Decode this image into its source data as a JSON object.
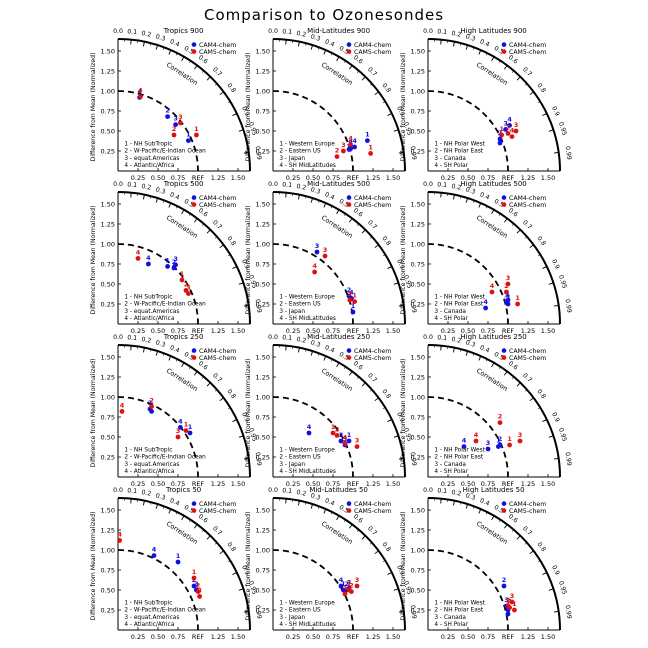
{
  "figure": {
    "title": "Comparison to Ozonesondes",
    "y_label": "Difference from Mean (Normalized)",
    "corr_label": "Correlation",
    "ref_label": "REF",
    "model_colors": {
      "CAM4-chem": "#1010e0",
      "CAM5-chem": "#e01010"
    }
  },
  "chart_data": [
    {
      "type": "scatter",
      "title": "Tropics 900",
      "region": "tropics",
      "legend": [
        "CAM4-chem",
        "CAM5-chem"
      ],
      "sites": [
        "1 - NH SubTropic",
        "2 - W-Pacific/E-Indian Ocean",
        "3 - equat.Americas",
        "4 - Atlantic/Africa"
      ],
      "series": [
        {
          "name": "CAM4-chem",
          "points": [
            {
              "label": "1",
              "x": 0.88,
              "y": 0.38
            },
            {
              "label": "2",
              "x": 0.62,
              "y": 0.68
            },
            {
              "label": "3",
              "x": 0.72,
              "y": 0.58
            },
            {
              "label": "4",
              "x": 0.27,
              "y": 0.92
            }
          ]
        },
        {
          "name": "CAM5-chem",
          "points": [
            {
              "label": "1",
              "x": 0.98,
              "y": 0.45
            },
            {
              "label": "2",
              "x": 0.7,
              "y": 0.45
            },
            {
              "label": "3",
              "x": 0.78,
              "y": 0.6
            },
            {
              "label": "4",
              "x": 0.28,
              "y": 0.93
            }
          ]
        }
      ]
    },
    {
      "type": "scatter",
      "title": "Mid-Latitudes 900",
      "region": "mid",
      "legend": [
        "CAM4-chem",
        "CAM5-chem"
      ],
      "sites": [
        "1 - Western Europe",
        "2 - Eastern US",
        "3 - Japan",
        "4 - SH MidLatitudes"
      ],
      "series": [
        {
          "name": "CAM4-chem",
          "points": [
            {
              "label": "1",
              "x": 1.18,
              "y": 0.38
            },
            {
              "label": "2",
              "x": 0.95,
              "y": 0.27
            },
            {
              "label": "3",
              "x": 0.97,
              "y": 0.28
            },
            {
              "label": "4",
              "x": 1.02,
              "y": 0.3
            }
          ]
        },
        {
          "name": "CAM5-chem",
          "points": [
            {
              "label": "1",
              "x": 1.22,
              "y": 0.22
            },
            {
              "label": "2",
              "x": 0.8,
              "y": 0.18
            },
            {
              "label": "3",
              "x": 0.88,
              "y": 0.25
            },
            {
              "label": "4",
              "x": 0.97,
              "y": 0.33
            }
          ]
        }
      ]
    },
    {
      "type": "scatter",
      "title": "High Latitudes 900",
      "region": "high",
      "legend": [
        "CAM4-chem",
        "CAM5-chem"
      ],
      "sites": [
        "1 - NH Polar West",
        "2 - NH Polar East",
        "3 - Canada",
        "4 - SH Polar"
      ],
      "sites_overlap": true,
      "series": [
        {
          "name": "CAM4-chem",
          "points": [
            {
              "label": "1",
              "x": 0.9,
              "y": 0.35
            },
            {
              "label": "2",
              "x": 0.9,
              "y": 0.4
            },
            {
              "label": "3",
              "x": 0.97,
              "y": 0.52
            },
            {
              "label": "4",
              "x": 1.02,
              "y": 0.57
            }
          ]
        },
        {
          "name": "CAM5-chem",
          "points": [
            {
              "label": "1",
              "x": 0.92,
              "y": 0.45
            },
            {
              "label": "2",
              "x": 1.0,
              "y": 0.47
            },
            {
              "label": "3",
              "x": 1.1,
              "y": 0.5
            },
            {
              "label": "4",
              "x": 1.05,
              "y": 0.43
            }
          ]
        }
      ]
    },
    {
      "type": "scatter",
      "title": "Tropics 500",
      "region": "tropics",
      "legend": [
        "CAM4-chem",
        "CAM5-chem"
      ],
      "sites": [
        "1 - NH SubTropic",
        "2 - W-Pacific/E-Indian Ocean",
        "3 - equat.Americas",
        "4 - Atlantic/Africa"
      ],
      "series": [
        {
          "name": "CAM4-chem",
          "points": [
            {
              "label": "1",
              "x": 0.62,
              "y": 0.72
            },
            {
              "label": "2",
              "x": 0.7,
              "y": 0.7
            },
            {
              "label": "3",
              "x": 0.72,
              "y": 0.74
            },
            {
              "label": "4",
              "x": 0.38,
              "y": 0.75
            }
          ]
        },
        {
          "name": "CAM5-chem",
          "points": [
            {
              "label": "1",
              "x": 0.8,
              "y": 0.55
            },
            {
              "label": "2",
              "x": 0.85,
              "y": 0.42
            },
            {
              "label": "3",
              "x": 0.88,
              "y": 0.38
            },
            {
              "label": "4",
              "x": 0.25,
              "y": 0.82
            }
          ]
        }
      ]
    },
    {
      "type": "scatter",
      "title": "Mid-Latitudes 500",
      "region": "mid",
      "legend": [
        "CAM4-chem",
        "CAM5-chem"
      ],
      "sites": [
        "1 - Western Europe",
        "2 - Eastern US",
        "3 - Japan",
        "4 - SH MidLatitudes"
      ],
      "series": [
        {
          "name": "CAM4-chem",
          "points": [
            {
              "label": "1",
              "x": 1.0,
              "y": 0.15
            },
            {
              "label": "2",
              "x": 0.95,
              "y": 0.35
            },
            {
              "label": "3",
              "x": 0.55,
              "y": 0.9
            },
            {
              "label": "4",
              "x": 0.98,
              "y": 0.32
            }
          ]
        },
        {
          "name": "CAM5-chem",
          "points": [
            {
              "label": "1",
              "x": 1.02,
              "y": 0.28
            },
            {
              "label": "2",
              "x": 0.96,
              "y": 0.3
            },
            {
              "label": "3",
              "x": 0.65,
              "y": 0.85
            },
            {
              "label": "4",
              "x": 0.52,
              "y": 0.65
            }
          ]
        }
      ]
    },
    {
      "type": "scatter",
      "title": "High Latitudes 500",
      "region": "high",
      "legend": [
        "CAM4-chem",
        "CAM5-chem"
      ],
      "sites": [
        "1 - NH Polar West",
        "2 - NH Polar East",
        "3 - Canada",
        "4 - SH Polar"
      ],
      "sites_overlap": true,
      "series": [
        {
          "name": "CAM4-chem",
          "points": [
            {
              "label": "1",
              "x": 1.0,
              "y": 0.3
            },
            {
              "label": "2",
              "x": 1.0,
              "y": 0.25
            },
            {
              "label": "3",
              "x": 0.98,
              "y": 0.28
            },
            {
              "label": "4",
              "x": 0.72,
              "y": 0.2
            }
          ]
        },
        {
          "name": "CAM5-chem",
          "points": [
            {
              "label": "1",
              "x": 1.12,
              "y": 0.25
            },
            {
              "label": "2",
              "x": 0.98,
              "y": 0.4
            },
            {
              "label": "3",
              "x": 1.0,
              "y": 0.5
            },
            {
              "label": "4",
              "x": 0.8,
              "y": 0.4
            }
          ]
        }
      ]
    },
    {
      "type": "scatter",
      "title": "Tropics 250",
      "region": "tropics",
      "legend": [
        "CAM4-chem",
        "CAM5-chem"
      ],
      "sites": [
        "1 - NH SubTropic",
        "2 - W-Pacific/E-Indian Ocean",
        "3 - equat.Americas",
        "4 - Atlantic/Africa"
      ],
      "series": [
        {
          "name": "CAM4-chem",
          "points": [
            {
              "label": "1",
              "x": 0.9,
              "y": 0.55
            },
            {
              "label": "2",
              "x": 0.4,
              "y": 0.85
            },
            {
              "label": "3",
              "x": 0.42,
              "y": 0.82
            },
            {
              "label": "4",
              "x": 0.78,
              "y": 0.62
            }
          ]
        },
        {
          "name": "CAM5-chem",
          "points": [
            {
              "label": "1",
              "x": 0.85,
              "y": 0.58
            },
            {
              "label": "2",
              "x": 0.42,
              "y": 0.88
            },
            {
              "label": "3",
              "x": 0.75,
              "y": 0.5
            },
            {
              "label": "4",
              "x": 0.05,
              "y": 0.82
            }
          ]
        }
      ]
    },
    {
      "type": "scatter",
      "title": "Mid-Latitudes 250",
      "region": "mid",
      "legend": [
        "CAM4-chem",
        "CAM5-chem"
      ],
      "sites": [
        "1 - Western Europe",
        "2 - Eastern US",
        "3 - Japan",
        "4 - SH MidLatitudes"
      ],
      "series": [
        {
          "name": "CAM4-chem",
          "points": [
            {
              "label": "1",
              "x": 0.95,
              "y": 0.45
            },
            {
              "label": "2",
              "x": 0.85,
              "y": 0.45
            },
            {
              "label": "3",
              "x": 0.9,
              "y": 0.4
            },
            {
              "label": "4",
              "x": 0.45,
              "y": 0.55
            }
          ]
        },
        {
          "name": "CAM5-chem",
          "points": [
            {
              "label": "1",
              "x": 0.75,
              "y": 0.55
            },
            {
              "label": "2",
              "x": 0.8,
              "y": 0.52
            },
            {
              "label": "3",
              "x": 1.05,
              "y": 0.38
            },
            {
              "label": "4",
              "x": 0.9,
              "y": 0.42
            }
          ]
        }
      ]
    },
    {
      "type": "scatter",
      "title": "High Latitudes 250",
      "region": "high",
      "legend": [
        "CAM4-chem",
        "CAM5-chem"
      ],
      "sites": [
        "1 - NH Polar West",
        "2 - NH Polar East",
        "3 - Canada",
        "4 - SH Polar"
      ],
      "sites_overlap": true,
      "series": [
        {
          "name": "CAM4-chem",
          "points": [
            {
              "label": "1",
              "x": 0.88,
              "y": 0.38
            },
            {
              "label": "2",
              "x": 0.9,
              "y": 0.4
            },
            {
              "label": "3",
              "x": 0.75,
              "y": 0.35
            },
            {
              "label": "4",
              "x": 0.45,
              "y": 0.38
            }
          ]
        },
        {
          "name": "CAM5-chem",
          "points": [
            {
              "label": "1",
              "x": 1.02,
              "y": 0.4
            },
            {
              "label": "2",
              "x": 0.9,
              "y": 0.68
            },
            {
              "label": "3",
              "x": 1.15,
              "y": 0.45
            },
            {
              "label": "4",
              "x": 0.6,
              "y": 0.45
            }
          ]
        }
      ]
    },
    {
      "type": "scatter",
      "title": "Tropics 50",
      "region": "tropics",
      "legend": [
        "CAM4-chem",
        "CAM5-chem"
      ],
      "sites": [
        "1 - NH SubTropic",
        "2 - W-Pacific/E-Indian Ocean",
        "3 - equat.Americas",
        "4 - Atlantic/Africa"
      ],
      "series": [
        {
          "name": "CAM4-chem",
          "points": [
            {
              "label": "1",
              "x": 0.75,
              "y": 0.85
            },
            {
              "label": "2",
              "x": 0.95,
              "y": 0.55
            },
            {
              "label": "3",
              "x": 0.98,
              "y": 0.5
            },
            {
              "label": "4",
              "x": 0.45,
              "y": 0.93
            }
          ]
        },
        {
          "name": "CAM5-chem",
          "points": [
            {
              "label": "1",
              "x": 0.95,
              "y": 0.65
            },
            {
              "label": "2",
              "x": 1.0,
              "y": 0.48
            },
            {
              "label": "3",
              "x": 1.02,
              "y": 0.42
            },
            {
              "label": "4",
              "x": 0.02,
              "y": 1.12
            }
          ]
        }
      ]
    },
    {
      "type": "scatter",
      "title": "Mid-Latitudes 50",
      "region": "mid",
      "legend": [
        "CAM4-chem",
        "CAM5-chem"
      ],
      "sites": [
        "1 - Western Europe",
        "2 - Eastern US",
        "3 - Japan",
        "4 - SH MidLatitudes"
      ],
      "series": [
        {
          "name": "CAM4-chem",
          "points": [
            {
              "label": "1",
              "x": 0.88,
              "y": 0.5
            },
            {
              "label": "2",
              "x": 0.92,
              "y": 0.5
            },
            {
              "label": "3",
              "x": 0.95,
              "y": 0.52
            },
            {
              "label": "4",
              "x": 0.85,
              "y": 0.55
            }
          ]
        },
        {
          "name": "CAM5-chem",
          "points": [
            {
              "label": "1",
              "x": 0.95,
              "y": 0.5
            },
            {
              "label": "2",
              "x": 0.98,
              "y": 0.48
            },
            {
              "label": "3",
              "x": 1.05,
              "y": 0.55
            },
            {
              "label": "4",
              "x": 0.9,
              "y": 0.45
            }
          ]
        }
      ]
    },
    {
      "type": "scatter",
      "title": "High Latitudes 50",
      "region": "high",
      "legend": [
        "CAM4-chem",
        "CAM5-chem"
      ],
      "sites": [
        "1 - NH Polar West",
        "2 - NH Polar East",
        "3 - Canada",
        "4 - SH Polar"
      ],
      "sites_overlap": true,
      "series": [
        {
          "name": "CAM4-chem",
          "points": [
            {
              "label": "1",
              "x": 1.0,
              "y": 0.25
            },
            {
              "label": "2",
              "x": 0.95,
              "y": 0.55
            },
            {
              "label": "3",
              "x": 0.98,
              "y": 0.3
            },
            {
              "label": "4",
              "x": 1.0,
              "y": 0.2
            }
          ]
        },
        {
          "name": "CAM5-chem",
          "points": [
            {
              "label": "1",
              "x": 1.08,
              "y": 0.25
            },
            {
              "label": "2",
              "x": 1.0,
              "y": 0.3
            },
            {
              "label": "3",
              "x": 1.05,
              "y": 0.35
            },
            {
              "label": "4",
              "x": 1.02,
              "y": 0.28
            }
          ]
        }
      ]
    }
  ],
  "axis": {
    "xticks": [
      "0.25",
      "0.50",
      "0.75",
      "REF",
      "1.25",
      "1.50"
    ],
    "xtick_values": [
      0.25,
      0.5,
      0.75,
      1.0,
      1.25,
      1.5
    ],
    "yticks": [
      "0.25",
      "0.50",
      "0.75",
      "1.00",
      "1.25",
      "1.50"
    ],
    "ytick_values": [
      0.25,
      0.5,
      0.75,
      1.0,
      1.25,
      1.5
    ],
    "rmax": 1.65,
    "corr_ticks": [
      "0.0",
      "0.1",
      "0.2",
      "0.3",
      "0.4",
      "0.5",
      "0.6",
      "0.7",
      "0.8",
      "0.9",
      "0.95",
      "0.99"
    ],
    "corr_tick_values": [
      0.0,
      0.1,
      0.2,
      0.3,
      0.4,
      0.5,
      0.6,
      0.7,
      0.8,
      0.9,
      0.95,
      0.99
    ],
    "outer_corr_labels": [
      "0.5",
      "0.6",
      "0.7"
    ]
  }
}
